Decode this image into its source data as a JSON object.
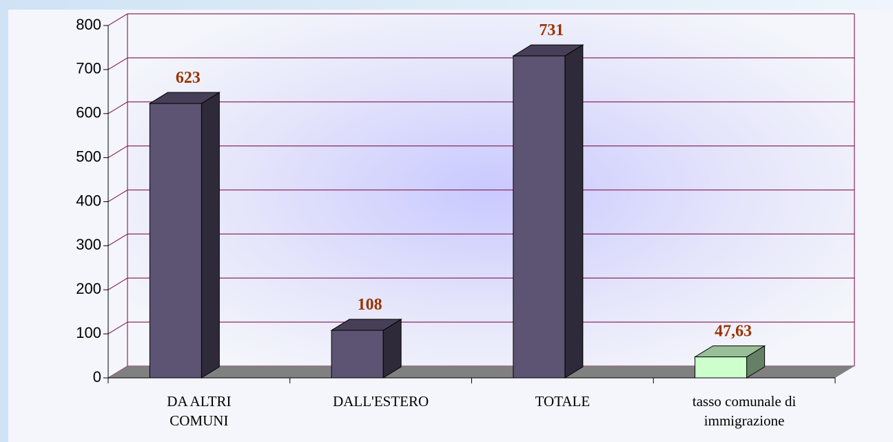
{
  "chart_data": {
    "type": "bar3d",
    "categories": [
      "DA ALTRI COMUNI",
      "DALL'ESTERO",
      "TOTALE",
      "tasso comunale di immigrazione"
    ],
    "values": [
      623,
      108,
      731,
      47.63
    ],
    "value_labels": [
      "623",
      "108",
      "731",
      "47,63"
    ],
    "colors": [
      "#5d5474",
      "#5d5474",
      "#5d5474",
      "#ccffcc"
    ],
    "ylim": [
      0,
      800
    ],
    "yticks": [
      0,
      100,
      200,
      300,
      400,
      500,
      600,
      700,
      800
    ],
    "grid": true
  }
}
